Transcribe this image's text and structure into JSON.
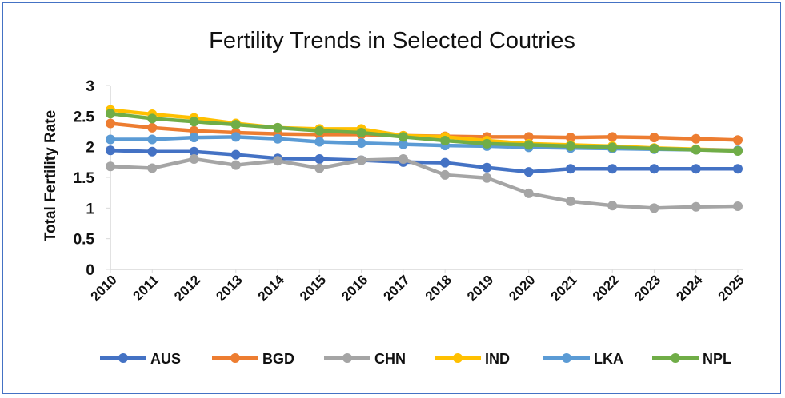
{
  "chart_data": {
    "type": "line",
    "title": "Fertility Trends in Selected Coutries",
    "xlabel": "",
    "ylabel": "Total Fertility Rate",
    "ylim": [
      0,
      3
    ],
    "yticks": [
      "0",
      "0.5",
      "1",
      "1.5",
      "2",
      "2.5",
      "3"
    ],
    "grid": false,
    "legend_position": "bottom",
    "categories": [
      "2010",
      "2011",
      "2012",
      "2013",
      "2014",
      "2015",
      "2016",
      "2017",
      "2018",
      "2019",
      "2020",
      "2021",
      "2022",
      "2023",
      "2024",
      "2025"
    ],
    "series": [
      {
        "name": "AUS",
        "color": "#4472c4",
        "values": [
          1.94,
          1.92,
          1.92,
          1.87,
          1.81,
          1.8,
          1.78,
          1.75,
          1.74,
          1.66,
          1.59,
          1.64,
          1.64,
          1.64,
          1.64,
          1.64
        ]
      },
      {
        "name": "BGD",
        "color": "#ed7d31",
        "values": [
          2.38,
          2.31,
          2.26,
          2.23,
          2.21,
          2.2,
          2.2,
          2.18,
          2.17,
          2.16,
          2.16,
          2.15,
          2.16,
          2.15,
          2.13,
          2.11
        ]
      },
      {
        "name": "CHN",
        "color": "#a5a5a5",
        "values": [
          1.68,
          1.65,
          1.8,
          1.7,
          1.77,
          1.65,
          1.78,
          1.8,
          1.54,
          1.49,
          1.24,
          1.11,
          1.04,
          1.0,
          1.02,
          1.03
        ]
      },
      {
        "name": "IND",
        "color": "#ffc000",
        "values": [
          2.6,
          2.53,
          2.47,
          2.38,
          2.31,
          2.29,
          2.29,
          2.18,
          2.16,
          2.1,
          2.05,
          2.03,
          2.01,
          1.98,
          1.96,
          1.94
        ]
      },
      {
        "name": "LKA",
        "color": "#5b9bd5",
        "values": [
          2.12,
          2.12,
          2.15,
          2.16,
          2.13,
          2.08,
          2.06,
          2.04,
          2.02,
          2.01,
          1.99,
          1.98,
          1.97,
          1.96,
          1.95,
          1.94
        ]
      },
      {
        "name": "NPL",
        "color": "#70ad47",
        "values": [
          2.54,
          2.46,
          2.41,
          2.36,
          2.31,
          2.26,
          2.23,
          2.16,
          2.1,
          2.05,
          2.03,
          2.01,
          1.99,
          1.97,
          1.95,
          1.93
        ]
      }
    ]
  }
}
